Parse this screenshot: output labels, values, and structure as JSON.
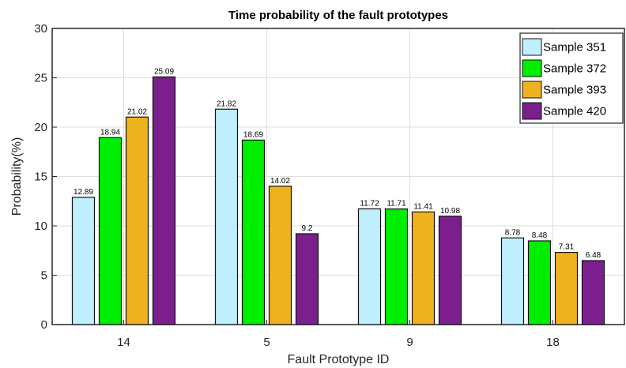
{
  "chart_data": {
    "type": "bar",
    "title": "Time probability of the fault prototypes",
    "xlabel": "Fault Prototype ID",
    "ylabel": "Probability(%)",
    "categories": [
      "14",
      "5",
      "9",
      "18"
    ],
    "ylim": [
      0,
      30
    ],
    "yticks": [
      0,
      5,
      10,
      15,
      20,
      25,
      30
    ],
    "grid": true,
    "legend_position": "top-right",
    "series": [
      {
        "name": "Sample 351",
        "color": "#bfeefc",
        "values": [
          12.89,
          21.82,
          11.72,
          8.78
        ]
      },
      {
        "name": "Sample 372",
        "color": "#00ee00",
        "values": [
          18.94,
          18.69,
          11.71,
          8.48
        ]
      },
      {
        "name": "Sample 393",
        "color": "#efb21f",
        "values": [
          21.02,
          14.02,
          11.41,
          7.31
        ]
      },
      {
        "name": "Sample 420",
        "color": "#7b1f8f",
        "values": [
          25.09,
          9.2,
          10.98,
          6.48
        ]
      }
    ]
  }
}
